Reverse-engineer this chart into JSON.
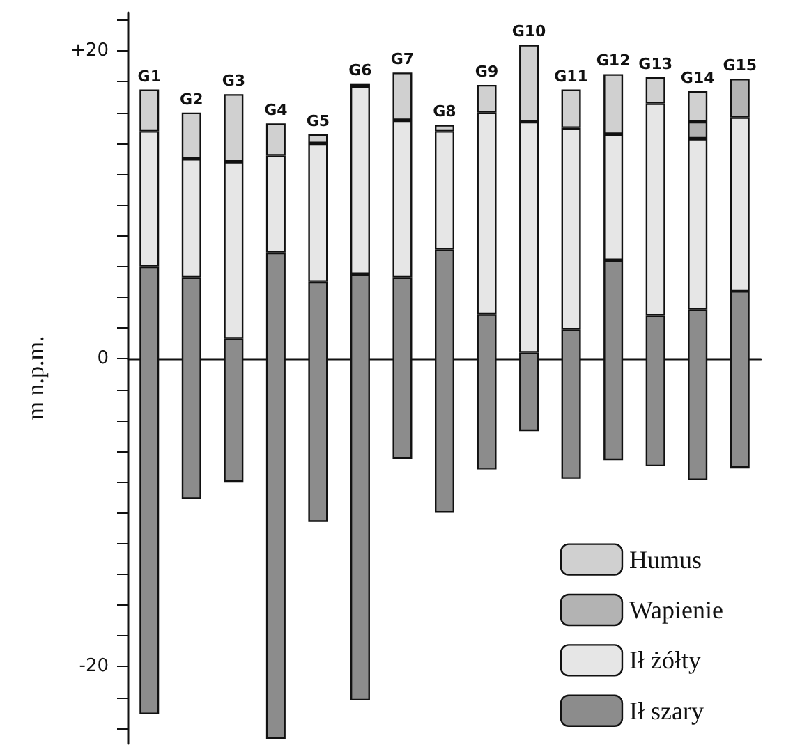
{
  "chart_data": {
    "type": "bar",
    "ylabel": "m n.p.m.",
    "categories": [
      "G1",
      "G2",
      "G3",
      "G4",
      "G5",
      "G6",
      "G7",
      "G8",
      "G9",
      "G10",
      "G11",
      "G12",
      "G13",
      "G14",
      "G15"
    ],
    "series": [
      {
        "name": "Ił szary",
        "color": "#8c8c8c",
        "base": [
          -23.1,
          -9.1,
          -8.0,
          -24.7,
          -10.6,
          -22.2,
          -6.5,
          -10.0,
          -7.2,
          -4.7,
          -7.8,
          -6.6,
          -7.0,
          -7.9,
          -7.1
        ],
        "values": [
          29.1,
          14.4,
          9.3,
          31.6,
          15.6,
          27.7,
          11.8,
          17.1,
          10.1,
          5.1,
          9.7,
          13.0,
          9.8,
          11.1,
          11.5
        ]
      },
      {
        "name": "Ił żółty",
        "color": "#e6e6e6",
        "base": [
          6.0,
          5.3,
          1.3,
          6.9,
          5.0,
          5.5,
          5.3,
          7.1,
          2.9,
          0.4,
          1.9,
          6.4,
          2.8,
          3.2,
          4.4
        ],
        "values": [
          8.8,
          7.7,
          11.5,
          6.3,
          9.0,
          12.2,
          10.2,
          7.7,
          13.1,
          15.0,
          13.1,
          8.2,
          13.8,
          11.1,
          11.3
        ]
      },
      {
        "name": "Wapienie",
        "color": "#b3b3b3",
        "base": [
          null,
          null,
          null,
          null,
          null,
          null,
          null,
          null,
          null,
          null,
          null,
          null,
          null,
          14.3,
          15.7
        ],
        "values": [
          null,
          null,
          null,
          null,
          null,
          null,
          null,
          null,
          null,
          null,
          null,
          null,
          null,
          1.1,
          2.5
        ]
      },
      {
        "name": "Humus",
        "color": "#d0d0d0",
        "base": [
          14.8,
          13.0,
          12.8,
          13.2,
          14.0,
          17.7,
          15.5,
          14.8,
          16.0,
          15.4,
          15.0,
          14.6,
          16.6,
          15.4,
          null
        ],
        "values": [
          2.7,
          3.0,
          4.4,
          2.1,
          0.6,
          0.2,
          3.1,
          0.4,
          1.8,
          5.0,
          2.5,
          3.9,
          1.7,
          2.0,
          null
        ]
      }
    ],
    "ylim": [
      -25,
      22.5
    ],
    "yticks": [
      {
        "value": -24,
        "label": null
      },
      {
        "value": -22,
        "label": null
      },
      {
        "value": -20,
        "label": "-20"
      },
      {
        "value": -18,
        "label": null
      },
      {
        "value": -16,
        "label": null
      },
      {
        "value": -14,
        "label": null
      },
      {
        "value": -12,
        "label": null
      },
      {
        "value": -10,
        "label": null
      },
      {
        "value": -8,
        "label": null
      },
      {
        "value": -6,
        "label": null
      },
      {
        "value": -4,
        "label": null
      },
      {
        "value": -2,
        "label": null
      },
      {
        "value": 0,
        "label": "0"
      },
      {
        "value": 2,
        "label": null
      },
      {
        "value": 4,
        "label": null
      },
      {
        "value": 6,
        "label": null
      },
      {
        "value": 8,
        "label": null
      },
      {
        "value": 10,
        "label": null
      },
      {
        "value": 12,
        "label": null
      },
      {
        "value": 14,
        "label": null
      },
      {
        "value": 16,
        "label": null
      },
      {
        "value": 18,
        "label": null
      },
      {
        "value": 20,
        "label": "+20"
      },
      {
        "value": 22,
        "label": null
      }
    ],
    "legend": "bottom right"
  }
}
